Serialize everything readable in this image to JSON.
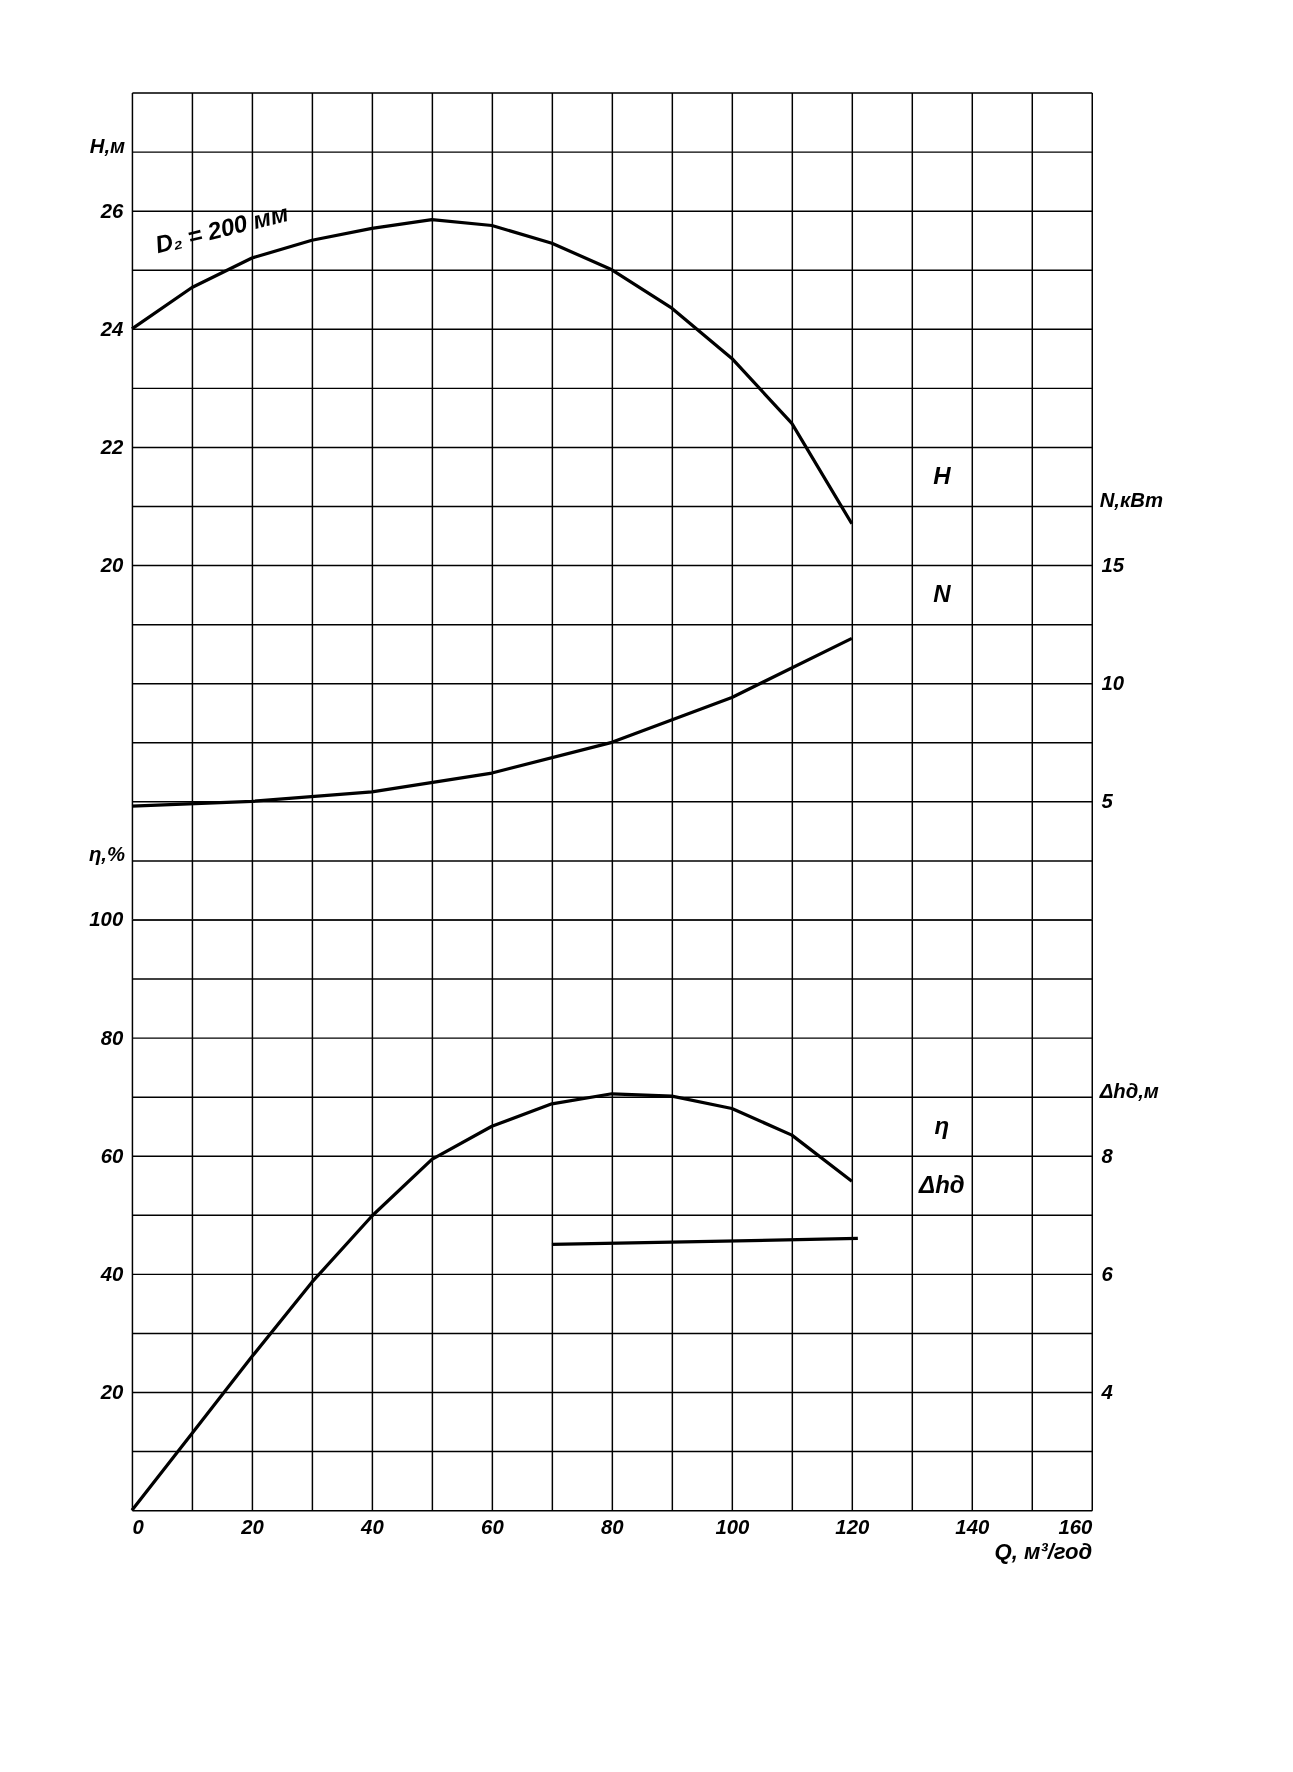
{
  "chart_data": [
    {
      "type": "line",
      "ylabel": "H,м",
      "y2label": "N,кВт",
      "tick_labels": "y",
      "annotations": [
        "D₂ = 200 мм"
      ],
      "xlim": [
        0,
        160
      ],
      "xticks": [
        0,
        10,
        20,
        30,
        40,
        50,
        60,
        70,
        80,
        90,
        100,
        110,
        120,
        130,
        140,
        150,
        160
      ],
      "ylim": [
        14,
        28
      ],
      "yticks": [
        {
          "value": 14,
          "label": null
        },
        {
          "value": 15,
          "label": null
        },
        {
          "value": 16,
          "label": null
        },
        {
          "value": 17,
          "label": null
        },
        {
          "value": 18,
          "label": null
        },
        {
          "value": 19,
          "label": null
        },
        20,
        {
          "value": 21,
          "label": null
        },
        22,
        {
          "value": 23,
          "label": null
        },
        24,
        {
          "value": 25,
          "label": null
        },
        26,
        {
          "value": 27,
          "label": null
        },
        {
          "value": 28,
          "label": null
        }
      ],
      "y2lim": [
        0,
        35
      ],
      "y2ticks": [
        5,
        10,
        15
      ],
      "grid": true,
      "marker": "none",
      "line_style": "solid",
      "series": [
        {
          "name": "H",
          "color": "#000000",
          "x": [
            0,
            10,
            20,
            30,
            40,
            50,
            60,
            70,
            80,
            90,
            100,
            110,
            120
          ],
          "values": [
            24.0,
            24.7,
            25.2,
            25.5,
            25.7,
            25.85,
            25.75,
            25.45,
            25.0,
            24.35,
            23.5,
            22.4,
            20.7
          ]
        },
        {
          "name": "N",
          "color": "#000000",
          "axis": "y2",
          "x": [
            0,
            20,
            40,
            60,
            80,
            100,
            120
          ],
          "values": [
            4.8,
            5.0,
            5.4,
            6.2,
            7.5,
            9.4,
            11.9
          ]
        }
      ]
    },
    {
      "type": "line",
      "xlabel": "Q, м³/год",
      "ylabel": "η,%",
      "y2label": "Δhд,м",
      "xlim": [
        0,
        160
      ],
      "xticks": [
        0,
        {
          "value": 10,
          "label": null
        },
        20,
        {
          "value": 30,
          "label": null
        },
        40,
        {
          "value": 50,
          "label": null
        },
        60,
        {
          "value": 70,
          "label": null
        },
        80,
        {
          "value": 90,
          "label": null
        },
        100,
        {
          "value": 110,
          "label": null
        },
        120,
        {
          "value": 130,
          "label": null
        },
        140,
        {
          "value": 150,
          "label": null
        },
        160
      ],
      "ylim": [
        0,
        100
      ],
      "yticks": [
        {
          "value": 0,
          "label": null
        },
        {
          "value": 10,
          "label": null
        },
        20,
        {
          "value": 30,
          "label": null
        },
        40,
        {
          "value": 50,
          "label": null
        },
        60,
        {
          "value": 70,
          "label": null
        },
        80,
        {
          "value": 90,
          "label": null
        },
        100
      ],
      "y2lim": [
        2,
        12
      ],
      "y2ticks": [
        4,
        6,
        8
      ],
      "grid": true,
      "marker": "none",
      "line_style": "solid",
      "series": [
        {
          "name": "η",
          "color": "#000000",
          "x": [
            0,
            10,
            20,
            30,
            40,
            50,
            60,
            70,
            80,
            90,
            100,
            110,
            120
          ],
          "values": [
            0,
            13,
            26,
            38.6,
            49.8,
            59.4,
            65,
            68.8,
            70.5,
            70.1,
            68,
            63.5,
            55.7
          ]
        },
        {
          "name": "Δhд",
          "color": "#000000",
          "axis": "y2",
          "x": [
            70,
            121
          ],
          "values": [
            6.5,
            6.6
          ]
        }
      ]
    }
  ]
}
